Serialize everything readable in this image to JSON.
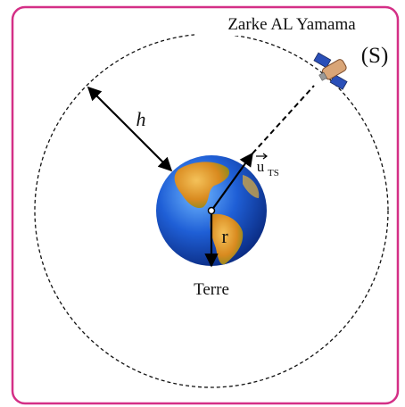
{
  "labels": {
    "satellite_name": "Zarke AL Yamama",
    "satellite": "(S)",
    "altitude": "h",
    "unit_vector": "u",
    "unit_vector_subscript": "TS",
    "radius": "r",
    "earth": "Terre"
  }
}
